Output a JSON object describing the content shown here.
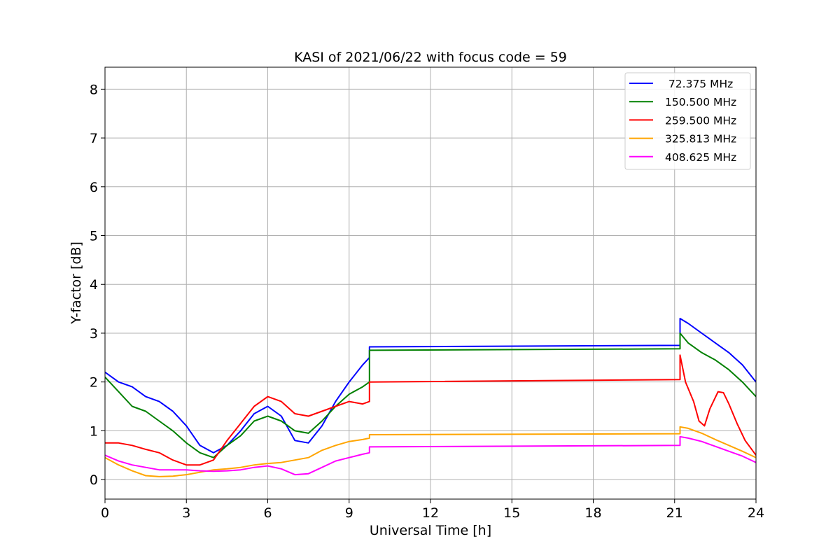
{
  "chart_data": {
    "type": "line",
    "title": "KASI of 2021/06/22 with focus code = 59",
    "xlabel": "Universal Time [h]",
    "ylabel": "Y-factor [dB]",
    "xlim": [
      0,
      24
    ],
    "ylim": [
      -0.4,
      8.45
    ],
    "xticks": [
      0,
      3,
      6,
      9,
      12,
      15,
      18,
      21,
      24
    ],
    "yticks": [
      0,
      1,
      2,
      3,
      4,
      5,
      6,
      7,
      8
    ],
    "grid": true,
    "legend_position": "top-right",
    "series": [
      {
        "name": " 72.375 MHz",
        "color": "#0000ff",
        "points": [
          [
            0,
            2.2
          ],
          [
            0.5,
            2.0
          ],
          [
            1,
            1.9
          ],
          [
            1.5,
            1.7
          ],
          [
            2,
            1.6
          ],
          [
            2.5,
            1.4
          ],
          [
            3,
            1.1
          ],
          [
            3.5,
            0.7
          ],
          [
            4,
            0.55
          ],
          [
            4.5,
            0.7
          ],
          [
            5,
            1.0
          ],
          [
            5.5,
            1.35
          ],
          [
            6,
            1.5
          ],
          [
            6.5,
            1.3
          ],
          [
            7,
            0.8
          ],
          [
            7.5,
            0.75
          ],
          [
            8,
            1.1
          ],
          [
            8.5,
            1.6
          ],
          [
            9,
            2.0
          ],
          [
            9.5,
            2.35
          ],
          [
            9.75,
            2.5
          ],
          [
            9.75,
            2.72
          ],
          [
            21.2,
            2.75
          ],
          [
            21.2,
            3.3
          ],
          [
            21.5,
            3.2
          ],
          [
            22,
            3.0
          ],
          [
            22.5,
            2.8
          ],
          [
            23,
            2.6
          ],
          [
            23.5,
            2.35
          ],
          [
            24,
            2.0
          ]
        ]
      },
      {
        "name": "150.500 MHz",
        "color": "#008000",
        "points": [
          [
            0,
            2.1
          ],
          [
            0.5,
            1.8
          ],
          [
            1,
            1.5
          ],
          [
            1.5,
            1.4
          ],
          [
            2,
            1.2
          ],
          [
            2.5,
            1.0
          ],
          [
            3,
            0.75
          ],
          [
            3.5,
            0.55
          ],
          [
            4,
            0.45
          ],
          [
            4.5,
            0.7
          ],
          [
            5,
            0.9
          ],
          [
            5.5,
            1.2
          ],
          [
            6,
            1.3
          ],
          [
            6.5,
            1.2
          ],
          [
            7,
            1.0
          ],
          [
            7.5,
            0.95
          ],
          [
            8,
            1.2
          ],
          [
            8.5,
            1.5
          ],
          [
            9,
            1.75
          ],
          [
            9.5,
            1.9
          ],
          [
            9.75,
            2.0
          ],
          [
            9.75,
            2.65
          ],
          [
            21.2,
            2.68
          ],
          [
            21.2,
            3.0
          ],
          [
            21.5,
            2.8
          ],
          [
            22,
            2.6
          ],
          [
            22.5,
            2.45
          ],
          [
            23,
            2.25
          ],
          [
            23.5,
            2.0
          ],
          [
            24,
            1.7
          ]
        ]
      },
      {
        "name": "259.500 MHz",
        "color": "#ff0000",
        "points": [
          [
            0,
            0.75
          ],
          [
            0.5,
            0.75
          ],
          [
            1,
            0.7
          ],
          [
            1.5,
            0.62
          ],
          [
            2,
            0.55
          ],
          [
            2.5,
            0.4
          ],
          [
            3,
            0.3
          ],
          [
            3.5,
            0.3
          ],
          [
            4,
            0.4
          ],
          [
            4.5,
            0.8
          ],
          [
            5,
            1.15
          ],
          [
            5.5,
            1.5
          ],
          [
            6,
            1.7
          ],
          [
            6.5,
            1.6
          ],
          [
            7,
            1.35
          ],
          [
            7.5,
            1.3
          ],
          [
            8,
            1.4
          ],
          [
            8.5,
            1.5
          ],
          [
            9,
            1.6
          ],
          [
            9.5,
            1.55
          ],
          [
            9.75,
            1.6
          ],
          [
            9.75,
            2.0
          ],
          [
            21.2,
            2.05
          ],
          [
            21.2,
            2.55
          ],
          [
            21.4,
            2.0
          ],
          [
            21.7,
            1.6
          ],
          [
            21.9,
            1.2
          ],
          [
            22.1,
            1.1
          ],
          [
            22.3,
            1.45
          ],
          [
            22.6,
            1.8
          ],
          [
            22.8,
            1.78
          ],
          [
            23,
            1.55
          ],
          [
            23.3,
            1.15
          ],
          [
            23.6,
            0.8
          ],
          [
            24,
            0.5
          ]
        ]
      },
      {
        "name": "325.813 MHz",
        "color": "#ffa500",
        "points": [
          [
            0,
            0.45
          ],
          [
            0.5,
            0.3
          ],
          [
            1,
            0.18
          ],
          [
            1.5,
            0.08
          ],
          [
            2,
            0.06
          ],
          [
            2.5,
            0.07
          ],
          [
            3,
            0.1
          ],
          [
            3.5,
            0.15
          ],
          [
            4,
            0.2
          ],
          [
            4.5,
            0.22
          ],
          [
            5,
            0.25
          ],
          [
            5.5,
            0.3
          ],
          [
            6,
            0.33
          ],
          [
            6.5,
            0.35
          ],
          [
            7,
            0.4
          ],
          [
            7.5,
            0.45
          ],
          [
            8,
            0.6
          ],
          [
            8.5,
            0.7
          ],
          [
            9,
            0.78
          ],
          [
            9.5,
            0.82
          ],
          [
            9.75,
            0.85
          ],
          [
            9.75,
            0.92
          ],
          [
            21.2,
            0.94
          ],
          [
            21.2,
            1.08
          ],
          [
            21.5,
            1.05
          ],
          [
            22,
            0.95
          ],
          [
            22.5,
            0.82
          ],
          [
            23,
            0.7
          ],
          [
            23.5,
            0.58
          ],
          [
            24,
            0.45
          ]
        ]
      },
      {
        "name": "408.625 MHz",
        "color": "#ff00ff",
        "points": [
          [
            0,
            0.5
          ],
          [
            0.5,
            0.38
          ],
          [
            1,
            0.3
          ],
          [
            1.5,
            0.25
          ],
          [
            2,
            0.2
          ],
          [
            2.5,
            0.2
          ],
          [
            3,
            0.2
          ],
          [
            3.5,
            0.18
          ],
          [
            4,
            0.17
          ],
          [
            4.5,
            0.18
          ],
          [
            5,
            0.2
          ],
          [
            5.5,
            0.25
          ],
          [
            6,
            0.28
          ],
          [
            6.5,
            0.22
          ],
          [
            7,
            0.1
          ],
          [
            7.5,
            0.12
          ],
          [
            8,
            0.25
          ],
          [
            8.5,
            0.38
          ],
          [
            9,
            0.45
          ],
          [
            9.5,
            0.52
          ],
          [
            9.75,
            0.55
          ],
          [
            9.75,
            0.67
          ],
          [
            21.2,
            0.7
          ],
          [
            21.2,
            0.88
          ],
          [
            21.5,
            0.85
          ],
          [
            22,
            0.78
          ],
          [
            22.5,
            0.68
          ],
          [
            23,
            0.58
          ],
          [
            23.5,
            0.48
          ],
          [
            24,
            0.35
          ]
        ]
      }
    ]
  }
}
